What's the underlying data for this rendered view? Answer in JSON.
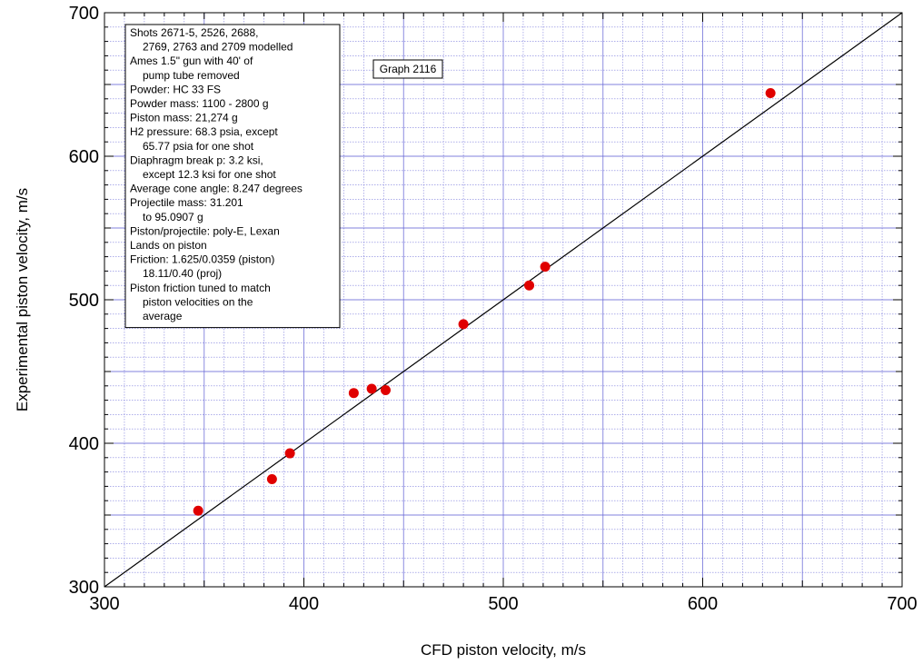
{
  "chart_data": {
    "type": "scatter",
    "title": "",
    "xlabel": "CFD piston velocity, m/s",
    "ylabel": "Experimental piston velocity, m/s",
    "xlim": [
      300,
      700
    ],
    "ylim": [
      300,
      700
    ],
    "x_ticks": [
      300,
      400,
      500,
      600,
      700
    ],
    "y_ticks": [
      300,
      400,
      500,
      600,
      700
    ],
    "grid": true,
    "grid_color": "#6a6ad8",
    "point_color": "#e00000",
    "line_color": "#000000",
    "reference_line": {
      "x": [
        300,
        700
      ],
      "y": [
        300,
        700
      ]
    },
    "series": [
      {
        "points": [
          {
            "x": 347,
            "y": 353
          },
          {
            "x": 384,
            "y": 375
          },
          {
            "x": 393,
            "y": 393
          },
          {
            "x": 425,
            "y": 435
          },
          {
            "x": 434,
            "y": 438
          },
          {
            "x": 441,
            "y": 437
          },
          {
            "x": 480,
            "y": 483
          },
          {
            "x": 513,
            "y": 510
          },
          {
            "x": 521,
            "y": 523
          },
          {
            "x": 634,
            "y": 644
          }
        ]
      }
    ],
    "graph_label": "Graph 2116",
    "annotation_lines": [
      "Shots 2671-5, 2526, 2688,",
      "  2769, 2763 and 2709 modelled",
      "Ames 1.5\" gun with 40' of",
      "  pump tube removed",
      "Powder: HC 33 FS",
      "Powder mass: 1100 - 2800  g",
      "Piston mass: 21,274 g",
      "H2 pressure: 68.3 psia, except",
      "  65.77 psia for one shot",
      "Diaphragm break p: 3.2 ksi,",
      "  except 12.3 ksi for one shot",
      "Average cone angle: 8.247 degrees",
      "Projectile mass:  31.201",
      "  to 95.0907 g",
      "Piston/projectile: poly-E, Lexan",
      "Lands on piston",
      "Friction: 1.625/0.0359 (piston)",
      "  18.11/0.40 (proj)",
      "Piston friction tuned to match",
      "  piston velocities on the",
      "  average"
    ]
  }
}
